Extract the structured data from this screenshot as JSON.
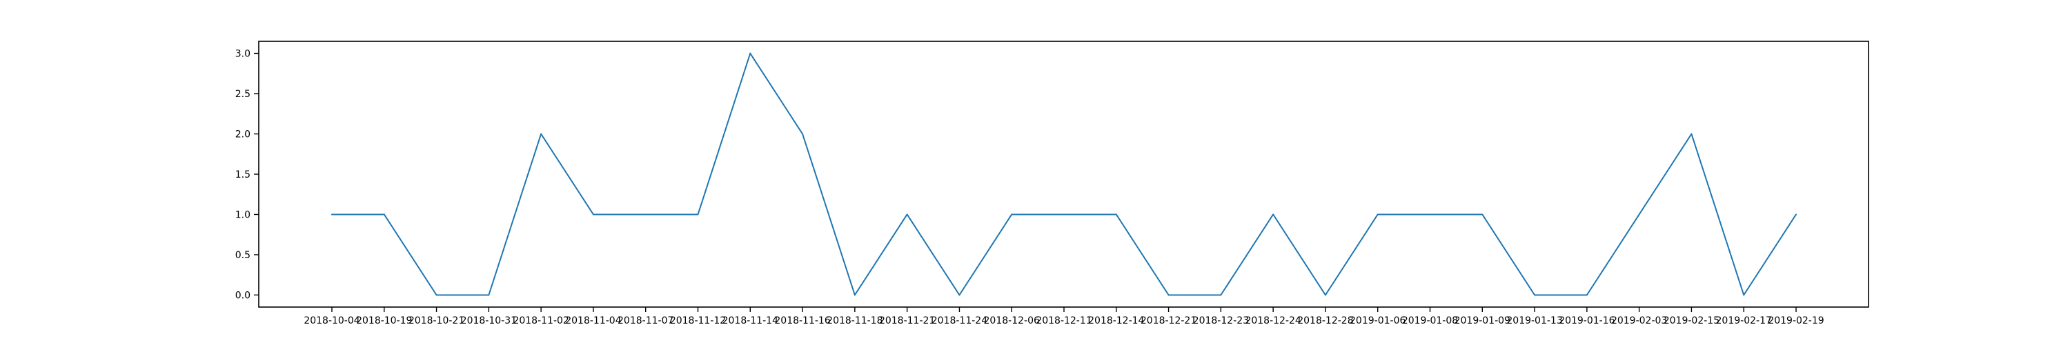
{
  "chart_data": {
    "type": "line",
    "title": "",
    "xlabel": "",
    "ylabel": "",
    "ylim": [
      -0.15,
      3.15
    ],
    "yticks": [
      0.0,
      0.5,
      1.0,
      1.5,
      2.0,
      2.5,
      3.0
    ],
    "ytick_labels": [
      "0.0",
      "0.5",
      "1.0",
      "1.5",
      "2.0",
      "2.5",
      "3.0"
    ],
    "grid": false,
    "legend": "none",
    "categories": [
      "2018-10-04",
      "2018-10-19",
      "2018-10-21",
      "2018-10-31",
      "2018-11-02",
      "2018-11-04",
      "2018-11-07",
      "2018-11-12",
      "2018-11-14",
      "2018-11-16",
      "2018-11-18",
      "2018-11-21",
      "2018-11-24",
      "2018-12-06",
      "2018-12-11",
      "2018-12-14",
      "2018-12-21",
      "2018-12-23",
      "2018-12-24",
      "2018-12-28",
      "2019-01-06",
      "2019-01-08",
      "2019-01-09",
      "2019-01-13",
      "2019-01-16",
      "2019-02-03",
      "2019-02-15",
      "2019-02-17",
      "2019-02-19"
    ],
    "series": [
      {
        "color": "#1f77b4",
        "values": [
          1,
          1,
          0,
          0,
          2,
          1,
          1,
          1,
          3,
          2,
          0,
          1,
          0,
          1,
          1,
          1,
          0,
          0,
          1,
          0,
          1,
          1,
          1,
          0,
          0,
          1,
          2,
          0,
          1
        ]
      }
    ],
    "colors": {
      "line": "#1f77b4",
      "axes": "#000000",
      "background": "#ffffff"
    }
  }
}
